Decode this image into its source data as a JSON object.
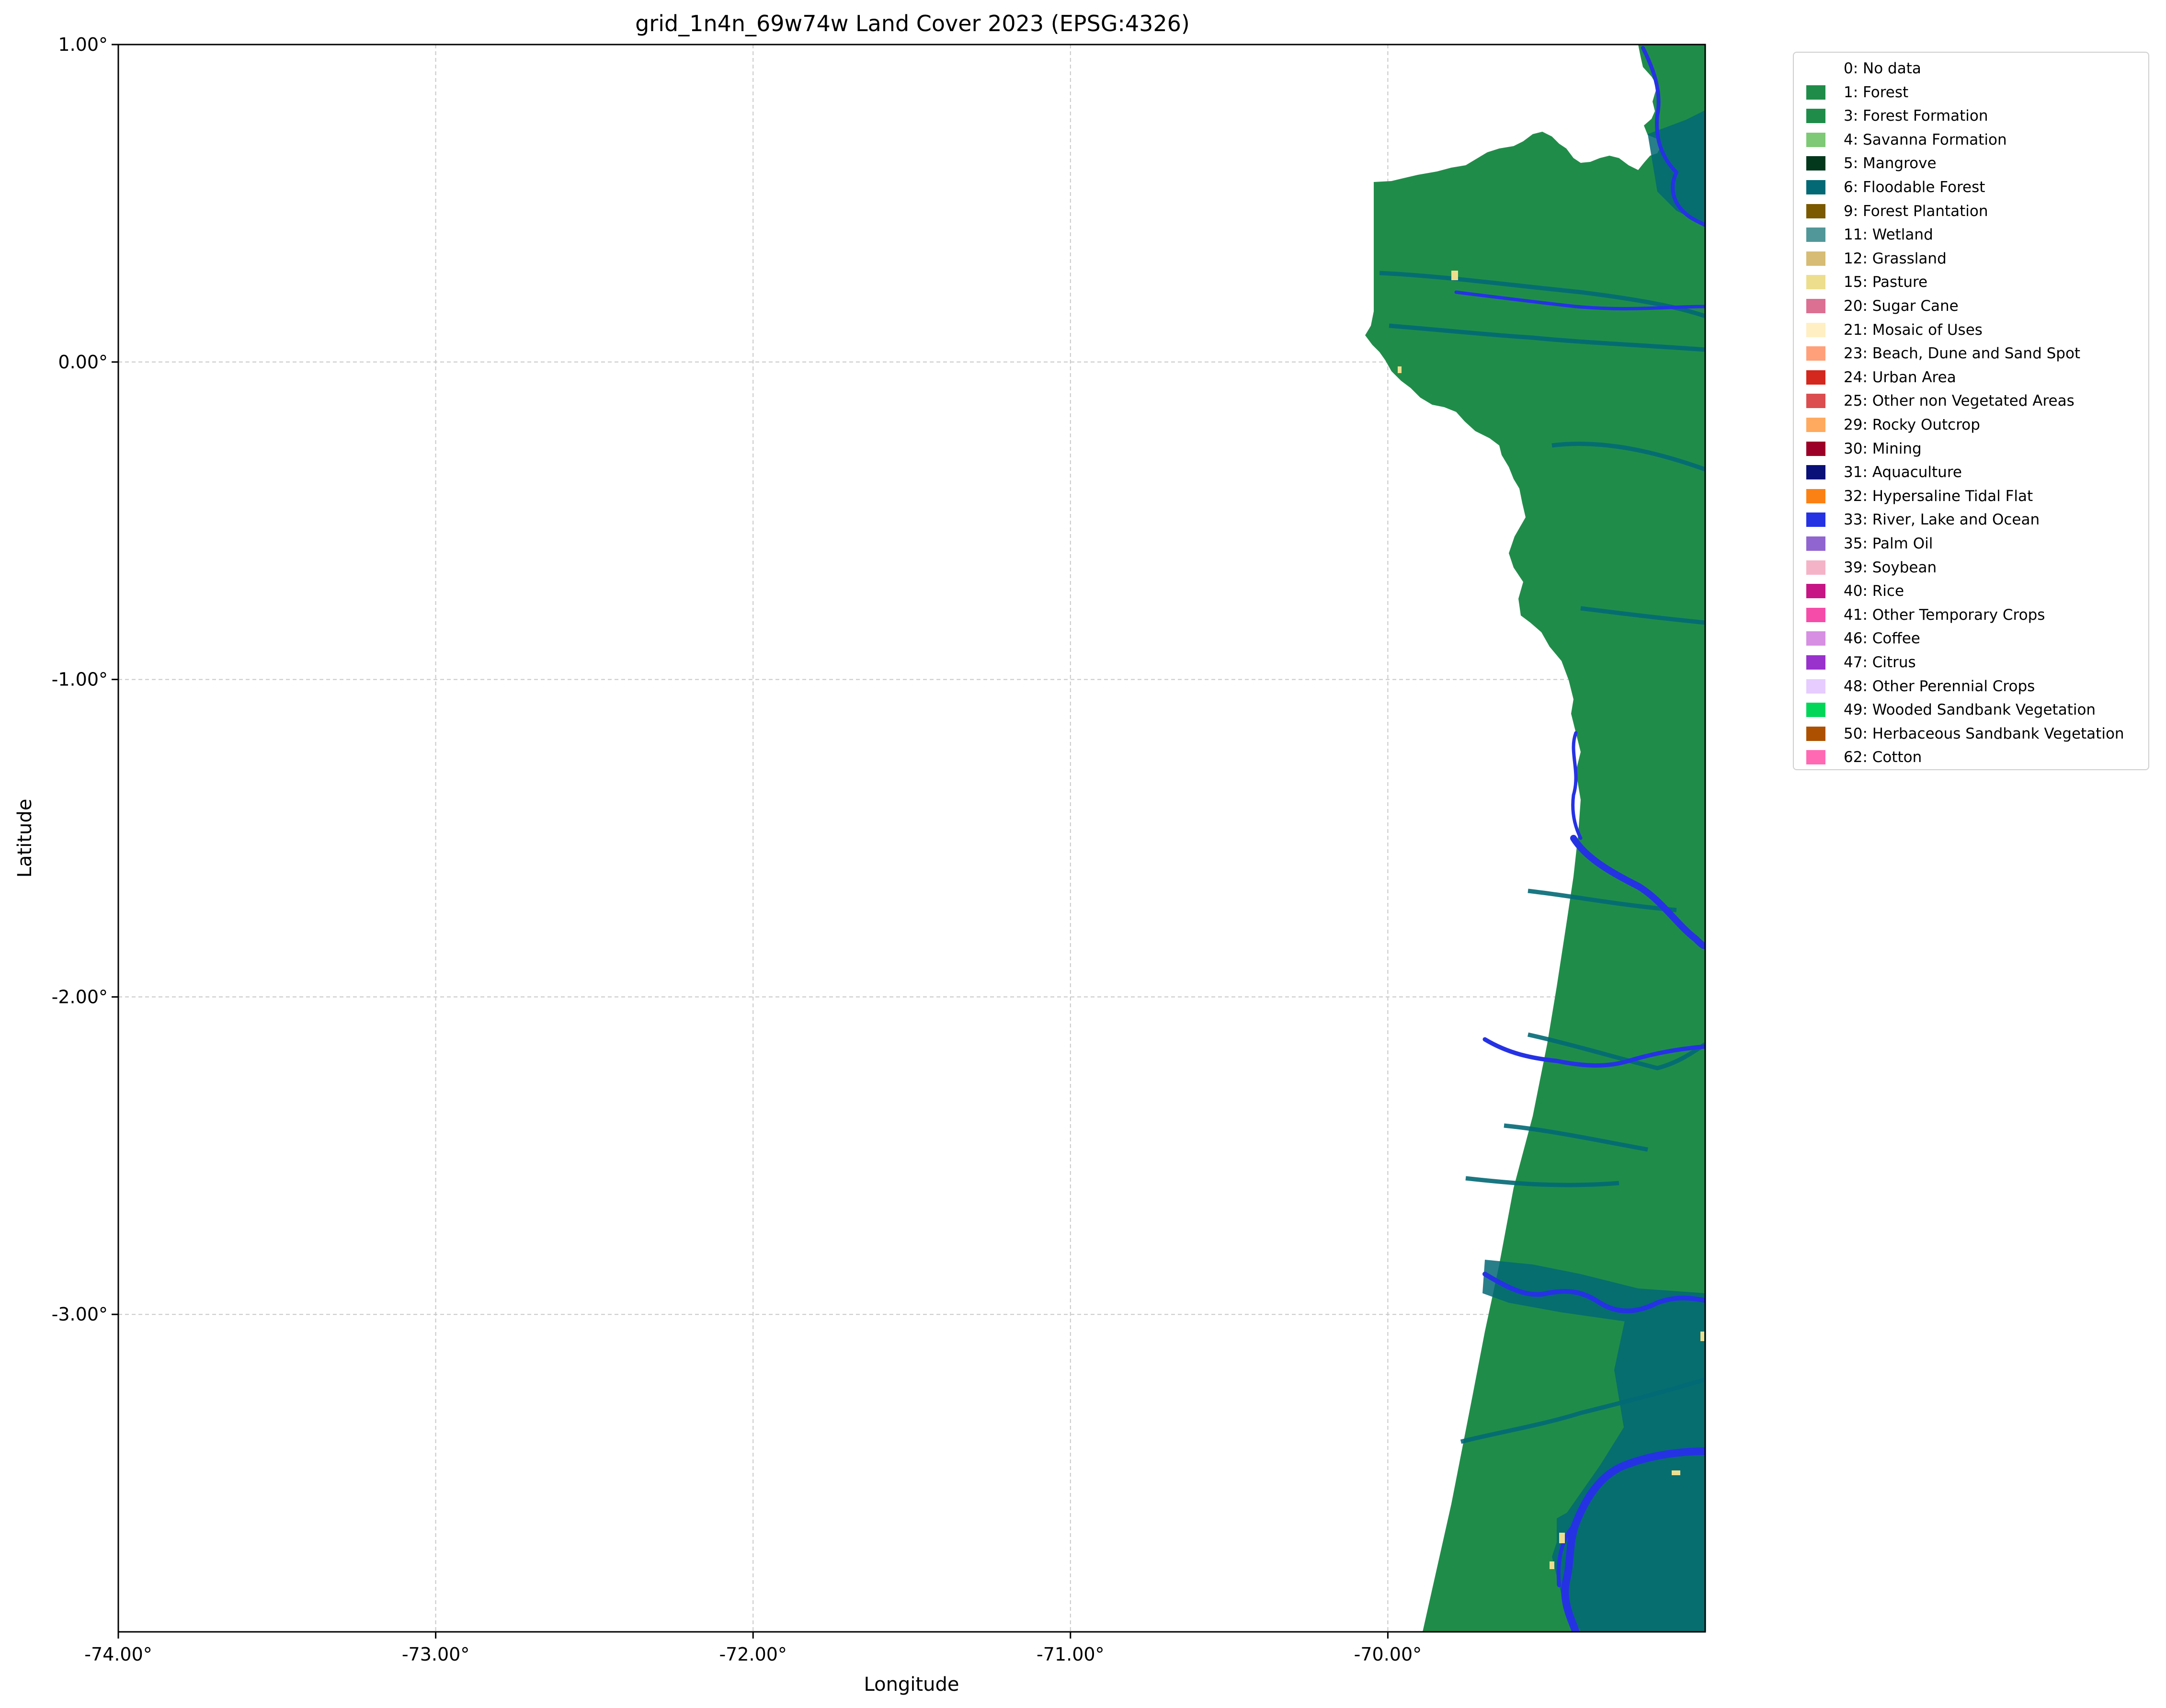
{
  "map": {
    "title": "grid_1n4n_69w74w Land Cover 2023 (EPSG:4326)",
    "xlabel": "Longitude",
    "ylabel": "Latitude",
    "x_ticks": [
      "-74.00°",
      "-73.00°",
      "-72.00°",
      "-71.00°",
      "-70.00°"
    ],
    "y_ticks": [
      "1.00°",
      "0.00°",
      "-1.00°",
      "-2.00°",
      "-3.00°"
    ],
    "x_tick_values": [
      -74,
      -73,
      -72,
      -71,
      -70
    ],
    "y_tick_values": [
      1,
      0,
      -1,
      -2,
      -3
    ],
    "xlim": [
      -74.0,
      -69.0
    ],
    "ylim": [
      -4.0,
      1.0
    ],
    "grid": true,
    "legend_position": "outside-right"
  },
  "legend": [
    {
      "label": "0: No data",
      "color": "#ffffff"
    },
    {
      "label": "1: Forest",
      "color": "#1f8d49"
    },
    {
      "label": "3: Forest Formation",
      "color": "#1f8d49"
    },
    {
      "label": "4: Savanna Formation",
      "color": "#7dc975"
    },
    {
      "label": "5: Mangrove",
      "color": "#04381d"
    },
    {
      "label": "6: Floodable Forest",
      "color": "#026975"
    },
    {
      "label": "9: Forest Plantation",
      "color": "#7a5900"
    },
    {
      "label": "11: Wetland",
      "color": "#519799"
    },
    {
      "label": "12: Grassland",
      "color": "#d6bc74"
    },
    {
      "label": "15: Pasture",
      "color": "#edde8e"
    },
    {
      "label": "20: Sugar Cane",
      "color": "#db7093"
    },
    {
      "label": "21: Mosaic of Uses",
      "color": "#ffefc3"
    },
    {
      "label": "23: Beach, Dune and Sand Spot",
      "color": "#ffa07a"
    },
    {
      "label": "24: Urban Area",
      "color": "#d4271e"
    },
    {
      "label": "25: Other non Vegetated Areas",
      "color": "#db4d4f"
    },
    {
      "label": "29: Rocky Outcrop",
      "color": "#ffaa5f"
    },
    {
      "label": "30: Mining",
      "color": "#9c0027"
    },
    {
      "label": "31: Aquaculture",
      "color": "#091077"
    },
    {
      "label": "32: Hypersaline Tidal Flat",
      "color": "#fc8114"
    },
    {
      "label": "33: River, Lake and Ocean",
      "color": "#2532e4"
    },
    {
      "label": "35: Palm Oil",
      "color": "#9065d0"
    },
    {
      "label": "39: Soybean",
      "color": "#f5b3c8"
    },
    {
      "label": "40: Rice",
      "color": "#c71585"
    },
    {
      "label": "41: Other Temporary Crops",
      "color": "#f54ca9"
    },
    {
      "label": "46: Coffee",
      "color": "#d68fe2"
    },
    {
      "label": "47: Citrus",
      "color": "#9932cc"
    },
    {
      "label": "48: Other Perennial Crops",
      "color": "#e6ccff"
    },
    {
      "label": "49: Wooded Sandbank Vegetation",
      "color": "#02d659"
    },
    {
      "label": "50: Herbaceous Sandbank Vegetation",
      "color": "#ad5100"
    },
    {
      "label": "62: Cotton",
      "color": "#ff69b4"
    }
  ]
}
